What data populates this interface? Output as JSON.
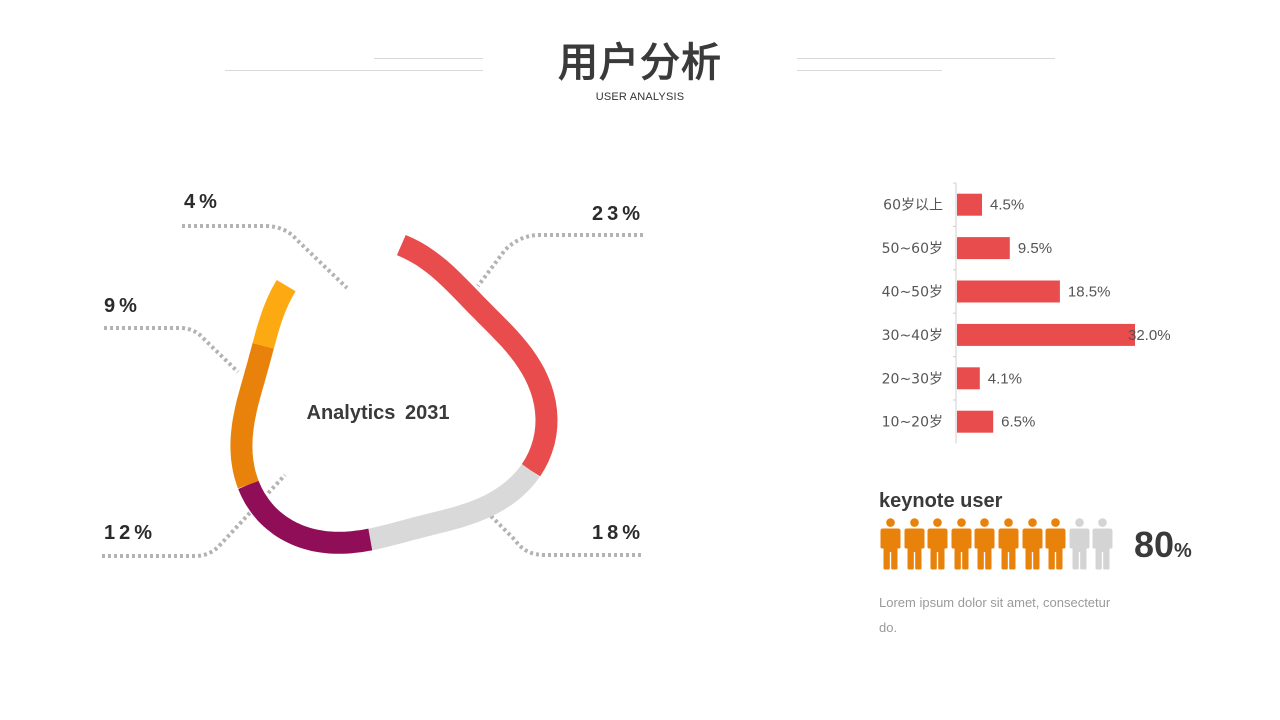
{
  "header": {
    "title": "用户分析",
    "subtitle": "USER ANALYSIS"
  },
  "chart_data": [
    {
      "type": "pie",
      "style": "donut",
      "center_label": "Analytics  2031",
      "slices": [
        {
          "label": "23%",
          "value": 23,
          "color": "#e84c4c"
        },
        {
          "label": "18%",
          "value": 18,
          "color": "#d9d9d9"
        },
        {
          "label": "12%",
          "value": 12,
          "color": "#8f0e57"
        },
        {
          "label": "9%",
          "value": 9,
          "color": "#e8820a"
        },
        {
          "label": "4%",
          "value": 4,
          "color": "#fdaa12"
        }
      ]
    },
    {
      "type": "bar",
      "orientation": "horizontal",
      "categories": [
        "60岁以上",
        "50~60岁",
        "40~50岁",
        "30~40岁",
        "20~30岁",
        "10~20岁"
      ],
      "values": [
        4.5,
        9.5,
        18.5,
        32.0,
        4.1,
        6.5
      ],
      "value_labels": [
        "4.5%",
        "9.5%",
        "18.5%",
        "32.0%",
        "4.1%",
        "6.5%"
      ],
      "xlim": [
        0,
        32
      ],
      "color": "#e84c4c",
      "grid": false
    }
  ],
  "keynote": {
    "title": "keynote user",
    "value": "80",
    "unit": "%",
    "filled_count": 8,
    "total_count": 10,
    "filled_color": "#e8820a",
    "empty_color": "#d4d4d4",
    "description": "Lorem ipsum dolor sit amet, consectetur do."
  }
}
